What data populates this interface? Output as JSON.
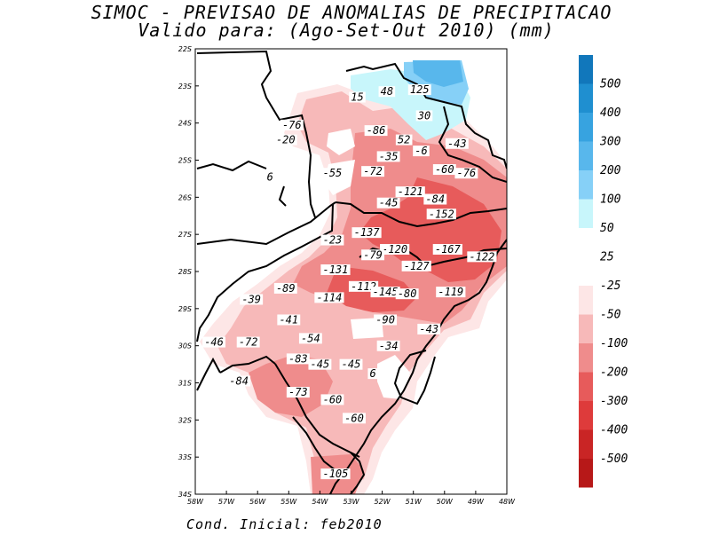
{
  "title_line1": "SIMOC - PREVISAO DE ANOMALIAS DE PRECIPITACAO",
  "title_line2": "Valido para: (Ago-Set-Out 2010) (mm)",
  "footer": "Cond. Inicial: feb2010",
  "lat_ticks": [
    "22S",
    "23S",
    "24S",
    "25S",
    "26S",
    "27S",
    "28S",
    "29S",
    "30S",
    "31S",
    "32S",
    "33S",
    "34S"
  ],
  "lon_ticks": [
    "58W",
    "57W",
    "56W",
    "55W",
    "54W",
    "53W",
    "52W",
    "51W",
    "50W",
    "49W",
    "48W"
  ],
  "colorbar": {
    "positive_labels": [
      "500",
      "400",
      "300",
      "200",
      "100",
      "50",
      "25"
    ],
    "negative_labels": [
      "-25",
      "-50",
      "-100",
      "-200",
      "-300",
      "-400",
      "-500"
    ],
    "positive_colors": [
      "#1177bb",
      "#1f8fd0",
      "#37a3e0",
      "#58b7ec",
      "#86d0f7",
      "#c8f6fb",
      "#ffffff"
    ],
    "negative_colors": [
      "#fde6e6",
      "#f7b9b9",
      "#ef8c8c",
      "#e75b5b",
      "#de3b3b",
      "#c92525",
      "#b71818"
    ]
  },
  "map_values": [
    {
      "label": "15",
      "lon": -52.8,
      "lat": -23.35
    },
    {
      "label": "48",
      "lon": -51.85,
      "lat": -23.2
    },
    {
      "label": "125",
      "lon": -50.8,
      "lat": -23.15
    },
    {
      "label": "30",
      "lon": -50.65,
      "lat": -23.85
    },
    {
      "label": "-76",
      "lon": -54.9,
      "lat": -24.1
    },
    {
      "label": "-20",
      "lon": -55.1,
      "lat": -24.5
    },
    {
      "label": "-86",
      "lon": -52.2,
      "lat": -24.25
    },
    {
      "label": "52",
      "lon": -51.3,
      "lat": -24.5
    },
    {
      "label": "-43",
      "lon": -49.6,
      "lat": -24.6
    },
    {
      "label": "-35",
      "lon": -51.8,
      "lat": -24.95
    },
    {
      "label": "-6",
      "lon": -50.75,
      "lat": -24.8
    },
    {
      "label": "-60",
      "lon": -50.0,
      "lat": -25.3
    },
    {
      "label": "-76",
      "lon": -49.3,
      "lat": -25.4
    },
    {
      "label": "6",
      "lon": -55.6,
      "lat": -25.5
    },
    {
      "label": "-55",
      "lon": -53.6,
      "lat": -25.4
    },
    {
      "label": "-72",
      "lon": -52.3,
      "lat": -25.35
    },
    {
      "label": "-121",
      "lon": -51.1,
      "lat": -25.9
    },
    {
      "label": "-84",
      "lon": -50.3,
      "lat": -26.1
    },
    {
      "label": "-45",
      "lon": -51.8,
      "lat": -26.2
    },
    {
      "label": "-152",
      "lon": -50.1,
      "lat": -26.5
    },
    {
      "label": "-137",
      "lon": -52.5,
      "lat": -27.0
    },
    {
      "label": "-23",
      "lon": -53.6,
      "lat": -27.2
    },
    {
      "label": "-120",
      "lon": -51.6,
      "lat": -27.45
    },
    {
      "label": "-167",
      "lon": -49.9,
      "lat": -27.45
    },
    {
      "label": "-79",
      "lon": -52.3,
      "lat": -27.6
    },
    {
      "label": "-122",
      "lon": -48.8,
      "lat": -27.65
    },
    {
      "label": "-127",
      "lon": -50.9,
      "lat": -27.9
    },
    {
      "label": "-131",
      "lon": -53.5,
      "lat": -28.0
    },
    {
      "label": "-89",
      "lon": -55.1,
      "lat": -28.5
    },
    {
      "label": "-112",
      "lon": -52.6,
      "lat": -28.45
    },
    {
      "label": "-145",
      "lon": -51.9,
      "lat": -28.6
    },
    {
      "label": "-114",
      "lon": -53.7,
      "lat": -28.75
    },
    {
      "label": "-80",
      "lon": -51.2,
      "lat": -28.65
    },
    {
      "label": "-119",
      "lon": -49.8,
      "lat": -28.6
    },
    {
      "label": "-39",
      "lon": -56.2,
      "lat": -28.8
    },
    {
      "label": "-41",
      "lon": -55.0,
      "lat": -29.35
    },
    {
      "label": "-90",
      "lon": -51.9,
      "lat": -29.35
    },
    {
      "label": "-43",
      "lon": -50.5,
      "lat": -29.6
    },
    {
      "label": "-46",
      "lon": -57.4,
      "lat": -29.95
    },
    {
      "label": "-72",
      "lon": -56.3,
      "lat": -29.95
    },
    {
      "label": "-54",
      "lon": -54.3,
      "lat": -29.85
    },
    {
      "label": "-34",
      "lon": -51.8,
      "lat": -30.05
    },
    {
      "label": "-83",
      "lon": -54.7,
      "lat": -30.4
    },
    {
      "label": "-45",
      "lon": -54.0,
      "lat": -30.55
    },
    {
      "label": "-45",
      "lon": -53.0,
      "lat": -30.55
    },
    {
      "label": "6",
      "lon": -52.3,
      "lat": -30.8
    },
    {
      "label": "-84",
      "lon": -56.6,
      "lat": -31.0
    },
    {
      "label": "-73",
      "lon": -54.7,
      "lat": -31.3
    },
    {
      "label": "-60",
      "lon": -53.6,
      "lat": -31.5
    },
    {
      "label": "-60",
      "lon": -52.9,
      "lat": -32.0
    },
    {
      "label": "-105",
      "lon": -53.5,
      "lat": -33.5
    }
  ]
}
